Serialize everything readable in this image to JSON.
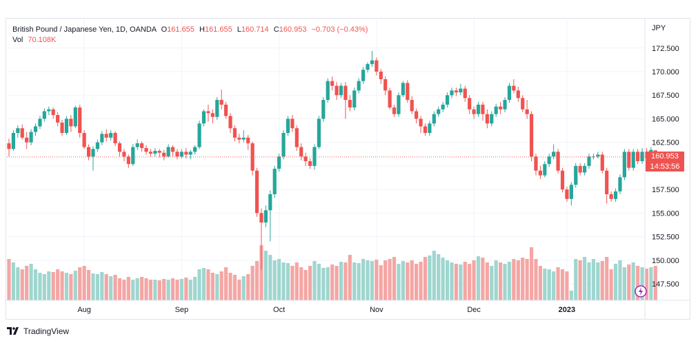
{
  "header": {
    "symbol": "British Pound / Japanese Yen, 1D, OANDA",
    "open_label": "O",
    "open": "161.655",
    "high_label": "H",
    "high": "161.655",
    "low_label": "L",
    "low": "160.714",
    "close_label": "C",
    "close": "160.953",
    "change": "−0.703 (−0.43%)",
    "vol_label": "Vol",
    "vol": "70.108K"
  },
  "price_axis": {
    "currency": "JPY",
    "last_price": "160.953",
    "countdown": "14:53:56"
  },
  "footer": {
    "brand": "TradingView"
  },
  "colors": {
    "up": "#26a69a",
    "down": "#ef5350",
    "up_vol": "#9fd6cf",
    "down_vol": "#f4a6a4",
    "grid": "#f0f3fa"
  },
  "chart_data": {
    "type": "candlestick",
    "ylim": [
      146.7,
      173.8
    ],
    "yticks": [
      147.5,
      150.0,
      152.5,
      155.0,
      157.5,
      160.0,
      162.5,
      165.0,
      167.5,
      170.0,
      172.5
    ],
    "ytick_labels": [
      "147.500",
      "150.000",
      "152.500",
      "155.000",
      "157.500",
      "160.000",
      "162.500",
      "165.000",
      "167.500",
      "170.000",
      "172.500"
    ],
    "xtick_labels": [
      {
        "label": "Aug",
        "index": 17,
        "bold": false
      },
      {
        "label": "Sep",
        "index": 39,
        "bold": false
      },
      {
        "label": "Oct",
        "index": 61,
        "bold": false
      },
      {
        "label": "Nov",
        "index": 83,
        "bold": false
      },
      {
        "label": "Dec",
        "index": 105,
        "bold": false
      },
      {
        "label": "2023",
        "index": 126,
        "bold": true
      }
    ],
    "volume_max": 100,
    "candles": [
      [
        162.4,
        161.8,
        162.9,
        161.0,
        60
      ],
      [
        161.8,
        163.5,
        163.8,
        161.6,
        55
      ],
      [
        163.5,
        164.0,
        164.3,
        163.0,
        48
      ],
      [
        164.0,
        163.0,
        164.4,
        162.8,
        45
      ],
      [
        163.0,
        162.5,
        163.6,
        161.8,
        50
      ],
      [
        162.5,
        163.6,
        163.9,
        162.2,
        53
      ],
      [
        163.6,
        164.2,
        164.5,
        163.2,
        45
      ],
      [
        164.2,
        165.0,
        165.3,
        163.9,
        40
      ],
      [
        165.0,
        165.8,
        166.1,
        164.7,
        38
      ],
      [
        165.8,
        166.0,
        166.3,
        165.4,
        42
      ],
      [
        166.0,
        165.4,
        166.2,
        165.0,
        41
      ],
      [
        165.4,
        164.6,
        165.7,
        164.2,
        45
      ],
      [
        164.6,
        163.5,
        164.9,
        163.2,
        42
      ],
      [
        163.5,
        165.0,
        165.3,
        163.3,
        40
      ],
      [
        165.0,
        164.2,
        165.4,
        163.6,
        38
      ],
      [
        164.2,
        166.2,
        166.4,
        164.0,
        43
      ],
      [
        166.2,
        163.5,
        166.5,
        163.0,
        48
      ],
      [
        163.5,
        162.0,
        163.8,
        161.8,
        50
      ],
      [
        162.0,
        161.0,
        162.3,
        160.6,
        44
      ],
      [
        161.0,
        161.8,
        162.1,
        159.5,
        39
      ],
      [
        161.8,
        162.5,
        162.8,
        161.5,
        38
      ],
      [
        162.5,
        163.4,
        163.7,
        162.2,
        41
      ],
      [
        163.4,
        163.0,
        163.9,
        162.6,
        38
      ],
      [
        163.0,
        163.5,
        163.8,
        162.7,
        35
      ],
      [
        163.5,
        162.4,
        163.7,
        162.1,
        37
      ],
      [
        162.4,
        161.5,
        162.6,
        161.0,
        32
      ],
      [
        161.5,
        161.0,
        161.8,
        160.5,
        30
      ],
      [
        161.0,
        160.2,
        161.2,
        159.8,
        34
      ],
      [
        160.2,
        162.0,
        162.3,
        160.0,
        30
      ],
      [
        162.0,
        162.4,
        162.8,
        161.7,
        32
      ],
      [
        162.4,
        161.9,
        162.6,
        161.5,
        34
      ],
      [
        161.9,
        161.5,
        162.2,
        161.2,
        32
      ],
      [
        161.5,
        161.3,
        161.8,
        161.0,
        30
      ],
      [
        161.3,
        161.6,
        161.9,
        161.0,
        30
      ],
      [
        161.6,
        161.4,
        161.8,
        160.9,
        29
      ],
      [
        161.4,
        161.0,
        161.7,
        160.6,
        31
      ],
      [
        161.0,
        162.0,
        162.3,
        160.9,
        30
      ],
      [
        162.0,
        161.5,
        162.2,
        161.0,
        32
      ],
      [
        161.5,
        161.0,
        161.8,
        160.7,
        30
      ],
      [
        161.0,
        161.5,
        161.8,
        160.8,
        31
      ],
      [
        161.5,
        161.2,
        161.9,
        160.8,
        33
      ],
      [
        161.2,
        161.5,
        161.7,
        160.7,
        30
      ],
      [
        161.5,
        162.0,
        162.2,
        161.2,
        34
      ],
      [
        162.0,
        164.5,
        164.8,
        161.8,
        45
      ],
      [
        164.5,
        165.8,
        166.0,
        164.2,
        47
      ],
      [
        165.8,
        165.6,
        166.5,
        164.7,
        45
      ],
      [
        165.6,
        165.2,
        166.0,
        164.5,
        40
      ],
      [
        165.2,
        167.0,
        167.3,
        164.9,
        38
      ],
      [
        167.0,
        166.5,
        168.1,
        166.0,
        42
      ],
      [
        166.5,
        165.3,
        166.8,
        165.0,
        48
      ],
      [
        165.3,
        164.0,
        165.6,
        163.5,
        40
      ],
      [
        164.0,
        163.0,
        164.3,
        162.6,
        37
      ],
      [
        163.0,
        162.8,
        163.4,
        162.4,
        30
      ],
      [
        162.8,
        163.0,
        163.8,
        162.5,
        35
      ],
      [
        163.0,
        162.4,
        163.3,
        161.7,
        38
      ],
      [
        162.4,
        159.5,
        162.6,
        159.0,
        50
      ],
      [
        159.5,
        155.0,
        159.8,
        154.6,
        57
      ],
      [
        155.0,
        154.0,
        155.5,
        149.0,
        80
      ],
      [
        154.0,
        155.3,
        155.8,
        153.5,
        72
      ],
      [
        155.3,
        157.0,
        157.4,
        152.0,
        66
      ],
      [
        157.0,
        159.7,
        160.0,
        156.6,
        58
      ],
      [
        159.7,
        161.0,
        161.3,
        159.4,
        60
      ],
      [
        161.0,
        163.5,
        163.8,
        160.7,
        55
      ],
      [
        163.5,
        165.0,
        165.3,
        163.2,
        54
      ],
      [
        165.0,
        164.0,
        165.4,
        163.6,
        50
      ],
      [
        164.0,
        162.0,
        164.3,
        161.6,
        55
      ],
      [
        162.0,
        161.0,
        162.4,
        160.6,
        48
      ],
      [
        161.0,
        160.5,
        161.4,
        160.0,
        44
      ],
      [
        160.5,
        160.0,
        160.8,
        159.7,
        50
      ],
      [
        160.0,
        162.0,
        162.3,
        159.6,
        57
      ],
      [
        162.0,
        165.0,
        165.3,
        161.8,
        53
      ],
      [
        165.0,
        167.0,
        167.3,
        164.7,
        47
      ],
      [
        167.0,
        169.0,
        169.3,
        166.7,
        48
      ],
      [
        169.0,
        168.5,
        169.5,
        168.0,
        52
      ],
      [
        168.5,
        167.5,
        168.9,
        167.0,
        50
      ],
      [
        167.5,
        168.5,
        168.8,
        167.2,
        56
      ],
      [
        168.5,
        167.0,
        168.9,
        165.0,
        55
      ],
      [
        167.0,
        166.2,
        167.5,
        165.8,
        66
      ],
      [
        166.2,
        168.0,
        168.3,
        165.9,
        55
      ],
      [
        168.0,
        169.0,
        169.3,
        167.7,
        54
      ],
      [
        169.0,
        170.2,
        170.5,
        168.7,
        60
      ],
      [
        170.2,
        170.8,
        171.0,
        169.9,
        58
      ],
      [
        170.8,
        171.2,
        172.2,
        170.5,
        57
      ],
      [
        171.2,
        170.0,
        171.5,
        169.6,
        59
      ],
      [
        170.0,
        169.2,
        170.3,
        168.7,
        51
      ],
      [
        169.2,
        168.0,
        169.5,
        167.5,
        58
      ],
      [
        168.0,
        166.2,
        168.3,
        166.0,
        60
      ],
      [
        166.2,
        165.5,
        166.5,
        165.2,
        63
      ],
      [
        165.5,
        167.5,
        167.8,
        165.2,
        53
      ],
      [
        167.5,
        168.8,
        169.0,
        167.3,
        57
      ],
      [
        168.8,
        167.0,
        169.1,
        166.7,
        55
      ],
      [
        167.0,
        165.8,
        167.4,
        165.5,
        58
      ],
      [
        165.8,
        165.0,
        166.1,
        164.5,
        53
      ],
      [
        165.0,
        164.2,
        165.3,
        163.5,
        56
      ],
      [
        164.2,
        163.5,
        164.5,
        163.2,
        63
      ],
      [
        163.5,
        164.5,
        164.8,
        163.2,
        65
      ],
      [
        164.5,
        165.5,
        165.8,
        164.2,
        72
      ],
      [
        165.5,
        166.0,
        166.3,
        165.2,
        67
      ],
      [
        166.0,
        166.5,
        166.8,
        165.7,
        62
      ],
      [
        166.5,
        167.5,
        167.8,
        166.2,
        58
      ],
      [
        167.5,
        168.0,
        168.3,
        167.2,
        55
      ],
      [
        168.0,
        167.8,
        168.3,
        167.4,
        53
      ],
      [
        167.8,
        168.2,
        168.7,
        167.5,
        52
      ],
      [
        168.2,
        167.2,
        168.5,
        166.8,
        56
      ],
      [
        167.2,
        166.0,
        167.5,
        165.5,
        53
      ],
      [
        166.0,
        165.5,
        166.3,
        165.0,
        58
      ],
      [
        165.5,
        166.5,
        166.8,
        165.2,
        64
      ],
      [
        166.5,
        165.5,
        166.8,
        164.8,
        62
      ],
      [
        165.5,
        164.5,
        166.0,
        164.0,
        55
      ],
      [
        164.5,
        165.5,
        165.8,
        164.2,
        50
      ],
      [
        165.5,
        166.3,
        166.6,
        165.2,
        58
      ],
      [
        166.3,
        166.0,
        166.8,
        165.5,
        55
      ],
      [
        166.0,
        167.0,
        167.3,
        165.7,
        53
      ],
      [
        167.0,
        168.5,
        168.8,
        166.7,
        56
      ],
      [
        168.5,
        168.0,
        169.2,
        167.7,
        60
      ],
      [
        168.0,
        167.2,
        168.4,
        166.8,
        58
      ],
      [
        167.2,
        166.0,
        167.5,
        165.7,
        62
      ],
      [
        166.0,
        165.5,
        167.0,
        165.0,
        60
      ],
      [
        165.5,
        161.0,
        165.8,
        160.5,
        77
      ],
      [
        161.0,
        159.5,
        161.3,
        159.0,
        60
      ],
      [
        159.5,
        159.0,
        160.0,
        158.6,
        50
      ],
      [
        159.0,
        160.2,
        160.5,
        158.8,
        46
      ],
      [
        160.2,
        161.0,
        161.3,
        159.9,
        45
      ],
      [
        161.0,
        161.5,
        162.3,
        160.7,
        42
      ],
      [
        161.5,
        159.5,
        161.8,
        159.2,
        48
      ],
      [
        159.5,
        157.5,
        159.8,
        157.2,
        45
      ],
      [
        157.5,
        156.5,
        157.8,
        156.2,
        42
      ],
      [
        156.5,
        158.0,
        158.3,
        155.8,
        14
      ],
      [
        158.0,
        160.0,
        160.3,
        157.7,
        60
      ],
      [
        160.0,
        159.3,
        160.3,
        159.0,
        58
      ],
      [
        159.3,
        160.0,
        160.3,
        159.0,
        63
      ],
      [
        160.0,
        161.0,
        161.3,
        159.7,
        55
      ],
      [
        161.0,
        161.0,
        161.3,
        160.7,
        60
      ],
      [
        161.0,
        161.2,
        161.5,
        160.8,
        55
      ],
      [
        161.2,
        159.5,
        161.5,
        159.2,
        57
      ],
      [
        159.5,
        157.0,
        159.8,
        156.0,
        63
      ],
      [
        157.0,
        156.5,
        157.3,
        156.2,
        45
      ],
      [
        156.5,
        157.3,
        157.6,
        156.2,
        53
      ],
      [
        157.3,
        158.8,
        159.1,
        157.0,
        58
      ],
      [
        158.8,
        161.5,
        161.8,
        158.5,
        48
      ],
      [
        161.5,
        159.8,
        161.8,
        159.5,
        52
      ],
      [
        159.8,
        161.5,
        161.8,
        159.5,
        55
      ],
      [
        161.5,
        160.5,
        161.8,
        160.2,
        50
      ],
      [
        160.5,
        161.5,
        161.9,
        160.2,
        48
      ],
      [
        161.5,
        160.8,
        161.9,
        160.5,
        46
      ],
      [
        160.8,
        161.7,
        162.0,
        160.5,
        48
      ],
      [
        161.655,
        160.953,
        161.655,
        160.714,
        50
      ]
    ]
  }
}
